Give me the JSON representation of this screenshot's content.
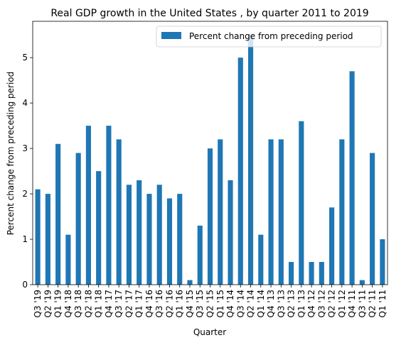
{
  "chart_data": {
    "type": "bar",
    "title": "Real GDP growth in the United States , by quarter 2011 to 2019",
    "xlabel": "Quarter",
    "ylabel": "Percent change from preceding period",
    "ylim": [
      0,
      5.8
    ],
    "yticks": [
      0,
      1,
      2,
      3,
      4,
      5
    ],
    "grid": false,
    "legend_position": "top-right",
    "categories": [
      "Q3 '19",
      "Q2 '19",
      "Q1 '19",
      "Q4 '18",
      "Q3 '18",
      "Q2 '18",
      "Q1 '18",
      "Q4 '17",
      "Q3 '17",
      "Q2 '17",
      "Q1 '17",
      "Q4 '16",
      "Q3 '16",
      "Q2 '16",
      "Q1 '16",
      "Q4 '15",
      "Q3 '15",
      "Q2 '15",
      "Q1 '15",
      "Q4 '14",
      "Q3 '14",
      "Q2 '14",
      "Q1 '14",
      "Q4 '13",
      "Q3 '13",
      "Q2 '13",
      "Q1 '13",
      "Q4 '12",
      "Q3 '12",
      "Q2 '12",
      "Q1 '12",
      "Q4 '11",
      "Q3 '11",
      "Q2 '11",
      "Q1 '11"
    ],
    "series": [
      {
        "name": "Percent change from preceding period",
        "color": "#1f77b4",
        "values": [
          2.1,
          2.0,
          3.1,
          1.1,
          2.9,
          3.5,
          2.5,
          3.5,
          3.2,
          2.2,
          2.3,
          2.0,
          2.2,
          1.9,
          2.0,
          0.1,
          1.3,
          3.0,
          3.2,
          2.3,
          5.0,
          5.5,
          1.1,
          3.2,
          3.2,
          0.5,
          3.6,
          0.5,
          0.5,
          1.7,
          3.2,
          4.7,
          0.1,
          2.9,
          1.0
        ]
      }
    ]
  }
}
